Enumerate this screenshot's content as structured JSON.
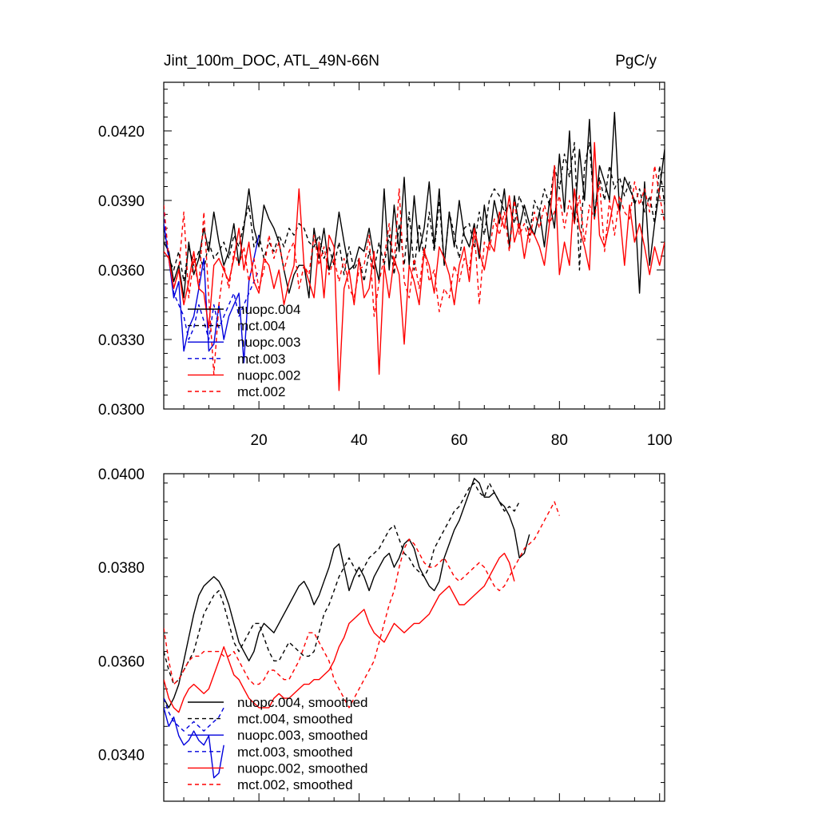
{
  "chart_data": [
    {
      "type": "line",
      "title_left": "Jint_100m_DOC, ATL_49N-66N",
      "title_right": "PgC/y",
      "xlim": [
        1,
        101
      ],
      "ylim": [
        0.03,
        0.0441
      ],
      "xticks": [
        20,
        40,
        60,
        80,
        100
      ],
      "xtick_labels": [
        "20",
        "40",
        "60",
        "80",
        "100"
      ],
      "yticks": [
        0.03,
        0.033,
        0.036,
        0.039,
        0.042
      ],
      "ytick_labels": [
        "0.0300",
        "0.0330",
        "0.0360",
        "0.0390",
        "0.0420"
      ],
      "legend_position": "lower-left",
      "series": [
        {
          "name": "nuopc.004",
          "color": "#000000",
          "dash": "solid",
          "x0": 1,
          "values": [
            0.0372,
            0.0368,
            0.0355,
            0.0362,
            0.0348,
            0.0372,
            0.0358,
            0.0365,
            0.0378,
            0.0368,
            0.0385,
            0.0372,
            0.0362,
            0.0368,
            0.038,
            0.0362,
            0.0378,
            0.0395,
            0.0378,
            0.037,
            0.0388,
            0.0382,
            0.0378,
            0.0372,
            0.036,
            0.035,
            0.0358,
            0.0362,
            0.0362,
            0.0348,
            0.0378,
            0.0365,
            0.0378,
            0.036,
            0.0368,
            0.0385,
            0.0372,
            0.036,
            0.0362,
            0.037,
            0.0368,
            0.0378,
            0.0365,
            0.0355,
            0.0395,
            0.036,
            0.0388,
            0.0368,
            0.04,
            0.0362,
            0.0392,
            0.0368,
            0.0378,
            0.0398,
            0.037,
            0.0395,
            0.0362,
            0.0385,
            0.037,
            0.039,
            0.0375,
            0.037,
            0.038,
            0.0365,
            0.0388,
            0.0372,
            0.039,
            0.038,
            0.0395,
            0.037,
            0.0392,
            0.0378,
            0.0388,
            0.038,
            0.0375,
            0.0385,
            0.037,
            0.039,
            0.0378,
            0.041,
            0.0385,
            0.042,
            0.038,
            0.0412,
            0.039,
            0.0425,
            0.0382,
            0.0405,
            0.0398,
            0.039,
            0.0428,
            0.0385,
            0.04,
            0.0395,
            0.039,
            0.035,
            0.0398,
            0.0362,
            0.038,
            0.0395,
            0.0412
          ]
        },
        {
          "name": "mct.004",
          "color": "#000000",
          "dash": "dashed",
          "x0": 1,
          "values": [
            0.0378,
            0.0365,
            0.036,
            0.0368,
            0.0355,
            0.037,
            0.0362,
            0.0368,
            0.036,
            0.0372,
            0.0365,
            0.0368,
            0.0372,
            0.0365,
            0.0375,
            0.037,
            0.038,
            0.0388,
            0.037,
            0.0375,
            0.0365,
            0.0372,
            0.0368,
            0.0375,
            0.037,
            0.0378,
            0.0375,
            0.038,
            0.0378,
            0.0372,
            0.037,
            0.0375,
            0.0365,
            0.037,
            0.0362,
            0.0372,
            0.0358,
            0.037,
            0.036,
            0.0365,
            0.0355,
            0.0368,
            0.036,
            0.0372,
            0.0362,
            0.0375,
            0.0358,
            0.038,
            0.0362,
            0.0385,
            0.036,
            0.038,
            0.0365,
            0.0385,
            0.0368,
            0.039,
            0.0362,
            0.0385,
            0.0375,
            0.0365,
            0.0378,
            0.038,
            0.037,
            0.0385,
            0.0375,
            0.039,
            0.0395,
            0.0392,
            0.0385,
            0.0388,
            0.038,
            0.0392,
            0.0385,
            0.0375,
            0.039,
            0.0385,
            0.0395,
            0.0388,
            0.0405,
            0.0395,
            0.041,
            0.04,
            0.0415,
            0.036,
            0.0405,
            0.0415,
            0.0385,
            0.04,
            0.039,
            0.0405,
            0.0395,
            0.04,
            0.0392,
            0.0398,
            0.0388,
            0.0395,
            0.0385,
            0.0392,
            0.038,
            0.0405,
            0.0388
          ]
        },
        {
          "name": "nuopc.003",
          "color": "#0000dd",
          "dash": "solid",
          "x0": 1,
          "values": [
            0.038,
            0.0365,
            0.0348,
            0.0355,
            0.0325,
            0.0335,
            0.034,
            0.0352,
            0.0365,
            0.0325,
            0.0328,
            0.0345,
            0.033,
            0.034,
            0.0345,
            0.035,
            0.032,
            0.0355,
            0.0365,
            0.0375
          ]
        },
        {
          "name": "mct.003",
          "color": "#0000dd",
          "dash": "dashed",
          "x0": 1,
          "values": [
            0.0385,
            0.0365,
            0.035,
            0.0345,
            0.034,
            0.033,
            0.0335,
            0.0345,
            0.0338,
            0.033,
            0.0345,
            0.0335,
            0.034,
            0.0345,
            0.035,
            0.034,
            0.0345,
            0.035,
            0.0355,
            0.036
          ]
        },
        {
          "name": "nuopc.002",
          "color": "#ff0000",
          "dash": "solid",
          "x0": 1,
          "values": [
            0.0368,
            0.0365,
            0.0352,
            0.036,
            0.0345,
            0.0355,
            0.0368,
            0.0352,
            0.035,
            0.0335,
            0.0362,
            0.0365,
            0.036,
            0.0355,
            0.0365,
            0.0378,
            0.036,
            0.0372,
            0.0355,
            0.035,
            0.0365,
            0.0362,
            0.0352,
            0.036,
            0.0345,
            0.0355,
            0.0362,
            0.0395,
            0.0362,
            0.0355,
            0.0348,
            0.0372,
            0.0348,
            0.0375,
            0.037,
            0.0308,
            0.0352,
            0.036,
            0.0345,
            0.0365,
            0.0348,
            0.0352,
            0.0368,
            0.0315,
            0.0362,
            0.0348,
            0.0365,
            0.0358,
            0.0328,
            0.0362,
            0.0355,
            0.0345,
            0.0368,
            0.0362,
            0.035,
            0.037,
            0.0365,
            0.0358,
            0.0345,
            0.0362,
            0.037,
            0.0355,
            0.0378,
            0.0368,
            0.036,
            0.0372,
            0.0368,
            0.0385,
            0.0378,
            0.0392,
            0.0372,
            0.038,
            0.0365,
            0.0378,
            0.0375,
            0.037,
            0.0362,
            0.038,
            0.0405,
            0.0358,
            0.0372,
            0.0362,
            0.0395,
            0.0378,
            0.037,
            0.036,
            0.0415,
            0.0375,
            0.037,
            0.038,
            0.0392,
            0.0385,
            0.0362,
            0.0388,
            0.0372,
            0.038,
            0.037,
            0.0358,
            0.037,
            0.0362,
            0.0372
          ]
        },
        {
          "name": "mct.002",
          "color": "#ff0000",
          "dash": "dashed",
          "x0": 1,
          "values": [
            0.0388,
            0.0365,
            0.0352,
            0.036,
            0.0385,
            0.0348,
            0.0365,
            0.0352,
            0.0385,
            0.0348,
            0.0315,
            0.0345,
            0.0362,
            0.0352,
            0.0368,
            0.0362,
            0.037,
            0.0355,
            0.0365,
            0.0352,
            0.036,
            0.0375,
            0.0365,
            0.0372,
            0.036,
            0.0368,
            0.0372,
            0.0352,
            0.0362,
            0.0358,
            0.0375,
            0.0362,
            0.037,
            0.0358,
            0.0365,
            0.0355,
            0.0365,
            0.0352,
            0.0348,
            0.036,
            0.0362,
            0.0375,
            0.034,
            0.0355,
            0.0365,
            0.038,
            0.0362,
            0.0395,
            0.0355,
            0.0348,
            0.0365,
            0.0352,
            0.037,
            0.0355,
            0.036,
            0.0342,
            0.0352,
            0.0348,
            0.0362,
            0.0355,
            0.0365,
            0.036,
            0.0378,
            0.0345,
            0.0372,
            0.0368,
            0.0382,
            0.0375,
            0.0385,
            0.0368,
            0.039,
            0.0375,
            0.038,
            0.0372,
            0.0385,
            0.0378,
            0.0388,
            0.038,
            0.0385,
            0.0392,
            0.0378,
            0.039,
            0.038,
            0.0392,
            0.0372,
            0.0388,
            0.0382,
            0.0398,
            0.0368,
            0.039,
            0.0375,
            0.0392,
            0.0385,
            0.0382,
            0.0398,
            0.0388,
            0.0395,
            0.0385,
            0.0405,
            0.0392,
            0.038
          ]
        }
      ]
    },
    {
      "type": "line",
      "xlim": [
        1,
        101
      ],
      "ylim": [
        0.033,
        0.04
      ],
      "yticks": [
        0.034,
        0.036,
        0.038,
        0.04
      ],
      "ytick_labels": [
        "0.0340",
        "0.0360",
        "0.0380",
        "0.0400"
      ],
      "legend_position": "lower-left",
      "series": [
        {
          "name": "nuopc.004, smoothed",
          "color": "#000000",
          "dash": "solid",
          "x0": 1,
          "values": [
            0.0352,
            0.035,
            0.0352,
            0.0355,
            0.036,
            0.0365,
            0.037,
            0.0374,
            0.0376,
            0.0377,
            0.0378,
            0.0377,
            0.0375,
            0.0372,
            0.0368,
            0.0364,
            0.0362,
            0.036,
            0.0362,
            0.0366,
            0.0368,
            0.0367,
            0.0366,
            0.0368,
            0.037,
            0.0372,
            0.0374,
            0.0376,
            0.0377,
            0.0375,
            0.0372,
            0.0374,
            0.0377,
            0.038,
            0.0384,
            0.0385,
            0.038,
            0.0375,
            0.0378,
            0.038,
            0.0378,
            0.0375,
            0.0378,
            0.038,
            0.0382,
            0.0383,
            0.038,
            0.0382,
            0.0385,
            0.0386,
            0.0384,
            0.038,
            0.0378,
            0.0376,
            0.0375,
            0.0377,
            0.0382,
            0.0385,
            0.0388,
            0.039,
            0.0393,
            0.0396,
            0.0399,
            0.0398,
            0.0395,
            0.0395,
            0.0396,
            0.0394,
            0.0393,
            0.0391,
            0.0388,
            0.0382,
            0.0383,
            0.0387
          ]
        },
        {
          "name": "mct.004, smoothed",
          "color": "#000000",
          "dash": "dashed",
          "x0": 1,
          "values": [
            0.0362,
            0.0358,
            0.0355,
            0.0356,
            0.0358,
            0.036,
            0.0362,
            0.0366,
            0.037,
            0.0372,
            0.0374,
            0.0375,
            0.0372,
            0.0368,
            0.0364,
            0.0362,
            0.0364,
            0.0366,
            0.0368,
            0.0368,
            0.0365,
            0.0362,
            0.036,
            0.036,
            0.0362,
            0.0364,
            0.0363,
            0.0362,
            0.0361,
            0.0361,
            0.0362,
            0.0366,
            0.037,
            0.0372,
            0.0375,
            0.0378,
            0.038,
            0.0382,
            0.038,
            0.0378,
            0.038,
            0.0382,
            0.0383,
            0.0384,
            0.0386,
            0.0388,
            0.0389,
            0.0386,
            0.0383,
            0.0382,
            0.038,
            0.0379,
            0.0378,
            0.038,
            0.0384,
            0.0386,
            0.0388,
            0.039,
            0.0392,
            0.0393,
            0.0395,
            0.0397,
            0.0398,
            0.0396,
            0.0395,
            0.0398,
            0.0396,
            0.0394,
            0.0392,
            0.0393,
            0.0392,
            0.0394
          ]
        },
        {
          "name": "nuopc.003, smoothed",
          "color": "#0000dd",
          "dash": "solid",
          "x0": 1,
          "values": [
            0.035,
            0.0346,
            0.0348,
            0.0344,
            0.0342,
            0.0343,
            0.0345,
            0.0343,
            0.0342,
            0.0344,
            0.0335,
            0.0336,
            0.0342
          ]
        },
        {
          "name": "mct.003, smoothed",
          "color": "#0000dd",
          "dash": "dashed",
          "x0": 1,
          "values": [
            0.0352,
            0.0349,
            0.0347,
            0.0346,
            0.0345,
            0.0346,
            0.0347,
            0.0346,
            0.0345,
            0.0346,
            0.0347,
            0.0348,
            0.035
          ]
        },
        {
          "name": "nuopc.002, smoothed",
          "color": "#ff0000",
          "dash": "solid",
          "x0": 1,
          "values": [
            0.0356,
            0.0352,
            0.035,
            0.0349,
            0.0352,
            0.0354,
            0.0355,
            0.0354,
            0.0353,
            0.0354,
            0.0357,
            0.036,
            0.0363,
            0.036,
            0.0357,
            0.0356,
            0.0354,
            0.0352,
            0.0351,
            0.035,
            0.035,
            0.035,
            0.0352,
            0.0353,
            0.0352,
            0.0352,
            0.0353,
            0.0354,
            0.0355,
            0.0355,
            0.0356,
            0.0356,
            0.0357,
            0.0358,
            0.036,
            0.0363,
            0.0365,
            0.0368,
            0.0369,
            0.037,
            0.0371,
            0.0368,
            0.0366,
            0.0365,
            0.0364,
            0.0366,
            0.0368,
            0.0367,
            0.0366,
            0.0367,
            0.0368,
            0.0368,
            0.0369,
            0.037,
            0.0372,
            0.0374,
            0.0375,
            0.0376,
            0.0374,
            0.0372,
            0.0372,
            0.0373,
            0.0374,
            0.0375,
            0.0376,
            0.0378,
            0.038,
            0.0382,
            0.0383,
            0.0381,
            0.0377
          ]
        },
        {
          "name": "mct.002, smoothed",
          "color": "#ff0000",
          "dash": "dashed",
          "x0": 1,
          "values": [
            0.0367,
            0.036,
            0.0355,
            0.0356,
            0.0358,
            0.036,
            0.0361,
            0.0361,
            0.0362,
            0.0362,
            0.0362,
            0.0362,
            0.0361,
            0.0361,
            0.0362,
            0.036,
            0.0358,
            0.0356,
            0.0355,
            0.0355,
            0.0356,
            0.0358,
            0.0358,
            0.0357,
            0.0356,
            0.0356,
            0.0358,
            0.036,
            0.0363,
            0.0366,
            0.0366,
            0.0364,
            0.0362,
            0.036,
            0.0356,
            0.0354,
            0.0352,
            0.035,
            0.0352,
            0.0354,
            0.0356,
            0.0358,
            0.036,
            0.0364,
            0.0368,
            0.0372,
            0.0375,
            0.038,
            0.0384,
            0.0386,
            0.0385,
            0.0383,
            0.0381,
            0.038,
            0.038,
            0.0381,
            0.0382,
            0.038,
            0.0378,
            0.0377,
            0.0378,
            0.0379,
            0.038,
            0.0381,
            0.038,
            0.0378,
            0.0376,
            0.0375,
            0.0376,
            0.0378,
            0.038,
            0.0382,
            0.0384,
            0.0385,
            0.0386,
            0.0388,
            0.039,
            0.0392,
            0.0394,
            0.0391
          ]
        }
      ]
    }
  ]
}
